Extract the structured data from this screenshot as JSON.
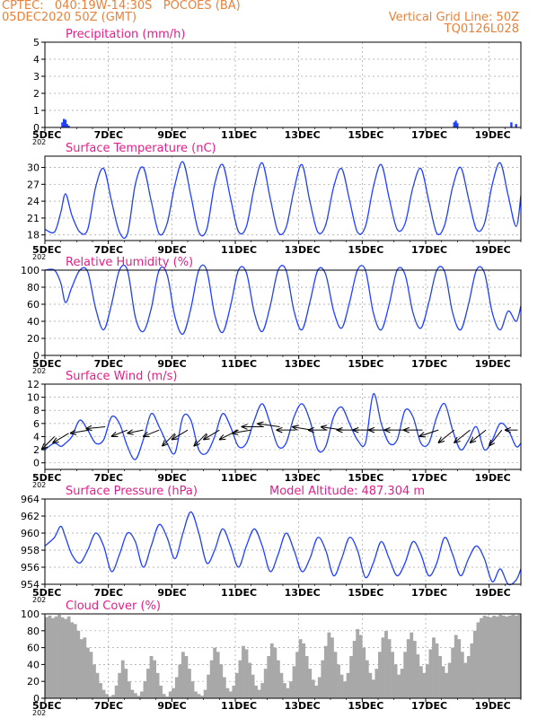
{
  "header": {
    "line1": "CPTEC:   040:19W-14:30S   POCOES (BA)",
    "line2": "05DEC2020 50Z (GMT)",
    "right1": "Vertical Grid Line: 50Z",
    "right2": "TQ0126L028"
  },
  "colors": {
    "header": "#e8823a",
    "title": "#e0208a",
    "line": "#2040ff",
    "wind_arrow": "#000000",
    "cloud": "#a8a8a8",
    "grid": "#a0a0a0"
  },
  "x_axis": {
    "range_days": [
      5,
      20
    ],
    "tick_labels": [
      "5DEC",
      "7DEC",
      "9DEC",
      "11DEC",
      "13DEC",
      "15DEC",
      "17DEC",
      "19DEC"
    ],
    "tick_days": [
      5,
      7,
      9,
      11,
      13,
      15,
      17,
      19
    ],
    "year_label": "202"
  },
  "chart_data": [
    {
      "type": "bar",
      "id": "precip",
      "title": "Precipitation (mm/h)",
      "ylim": [
        0,
        5
      ],
      "yticks": [
        0,
        1,
        2,
        3,
        4,
        5
      ],
      "x": [
        5.55,
        5.6,
        5.65,
        5.7,
        5.75,
        17.9,
        17.95,
        18.0,
        19.7,
        19.85
      ],
      "values": [
        0.3,
        0.5,
        0.45,
        0.2,
        0.1,
        0.3,
        0.4,
        0.25,
        0.3,
        0.2
      ]
    },
    {
      "type": "line",
      "id": "temp",
      "title": "Surface Temperature (nC)",
      "ylim": [
        17,
        32
      ],
      "yticks": [
        18,
        21,
        24,
        27,
        30
      ],
      "x": [
        5,
        5.3,
        5.5,
        5.65,
        5.85,
        6.1,
        6.35,
        6.6,
        6.85,
        7.1,
        7.35,
        7.6,
        7.85,
        8.1,
        8.35,
        8.6,
        8.85,
        9.1,
        9.35,
        9.6,
        9.85,
        10.1,
        10.35,
        10.6,
        10.85,
        11.1,
        11.35,
        11.6,
        11.85,
        12.1,
        12.35,
        12.6,
        12.85,
        13.1,
        13.35,
        13.6,
        13.85,
        14.1,
        14.35,
        14.6,
        14.85,
        15.1,
        15.35,
        15.6,
        15.85,
        16.1,
        16.35,
        16.6,
        16.85,
        17.1,
        17.35,
        17.6,
        17.85,
        18.1,
        18.35,
        18.6,
        18.85,
        19.1,
        19.35,
        19.6,
        19.85,
        20
      ],
      "values": [
        19,
        18.5,
        22,
        25.3,
        21.5,
        18.5,
        19,
        26.5,
        29.8,
        24,
        18.5,
        18.2,
        27,
        30,
        24,
        18.2,
        20,
        27,
        31,
        25,
        18.5,
        19,
        27,
        30.5,
        24.5,
        18.6,
        19.5,
        26.5,
        30.8,
        24.5,
        18.5,
        19.3,
        26,
        30.5,
        24,
        18.5,
        19.8,
        26.5,
        29.8,
        24.2,
        18.5,
        19.5,
        26.5,
        30.5,
        24.5,
        19,
        20,
        26.5,
        29.8,
        24,
        18.3,
        19.8,
        26.5,
        30,
        24.5,
        19,
        20,
        27,
        30.8,
        25,
        19.5,
        25
      ]
    },
    {
      "type": "line",
      "id": "rh",
      "title": "Relative Humidity (%)",
      "ylim": [
        0,
        100
      ],
      "yticks": [
        0,
        20,
        40,
        60,
        80,
        100
      ],
      "x": [
        5,
        5.3,
        5.5,
        5.65,
        5.85,
        6.1,
        6.35,
        6.6,
        6.85,
        7.1,
        7.35,
        7.6,
        7.85,
        8.1,
        8.35,
        8.6,
        8.85,
        9.1,
        9.35,
        9.6,
        9.85,
        10.1,
        10.35,
        10.6,
        10.85,
        11.1,
        11.35,
        11.6,
        11.85,
        12.1,
        12.35,
        12.6,
        12.85,
        13.1,
        13.35,
        13.6,
        13.85,
        14.1,
        14.35,
        14.6,
        14.85,
        15.1,
        15.35,
        15.6,
        15.85,
        16.1,
        16.35,
        16.6,
        16.85,
        17.1,
        17.35,
        17.6,
        17.85,
        18.1,
        18.35,
        18.6,
        18.85,
        19.1,
        19.35,
        19.6,
        19.85,
        20
      ],
      "values": [
        100,
        100,
        85,
        62,
        80,
        100,
        98,
        55,
        30,
        60,
        100,
        100,
        45,
        28,
        55,
        100,
        95,
        45,
        25,
        55,
        100,
        100,
        48,
        27,
        58,
        100,
        97,
        50,
        28,
        58,
        100,
        100,
        52,
        30,
        62,
        100,
        95,
        52,
        32,
        62,
        100,
        100,
        50,
        30,
        60,
        100,
        95,
        50,
        32,
        62,
        100,
        98,
        50,
        30,
        60,
        100,
        97,
        50,
        30,
        52,
        40,
        58
      ]
    },
    {
      "type": "line",
      "id": "wind",
      "title": "Surface Wind (m/s)",
      "ylim": [
        -1,
        12
      ],
      "yticks": [
        0,
        2,
        4,
        6,
        8,
        10,
        12
      ],
      "x": [
        5,
        5.3,
        5.5,
        5.65,
        5.85,
        6.1,
        6.35,
        6.6,
        6.85,
        7.1,
        7.35,
        7.6,
        7.85,
        8.1,
        8.35,
        8.6,
        8.85,
        9.1,
        9.35,
        9.6,
        9.85,
        10.1,
        10.35,
        10.6,
        10.85,
        11.1,
        11.35,
        11.6,
        11.85,
        12.1,
        12.35,
        12.6,
        12.85,
        13.1,
        13.35,
        13.6,
        13.85,
        14.1,
        14.35,
        14.6,
        14.85,
        15.1,
        15.35,
        15.6,
        15.85,
        16.1,
        16.35,
        16.6,
        16.85,
        17.1,
        17.35,
        17.6,
        17.85,
        18.1,
        18.35,
        18.6,
        18.85,
        19.1,
        19.35,
        19.6,
        19.85,
        20
      ],
      "values": [
        2,
        3,
        2.5,
        3,
        4,
        6.5,
        5,
        3,
        3.5,
        7,
        6,
        2.5,
        0.5,
        3.5,
        7.5,
        5.5,
        3,
        1.5,
        7,
        6.5,
        2,
        1.5,
        4,
        7.5,
        5.5,
        2.5,
        3,
        6.5,
        9,
        6,
        2.5,
        3,
        7,
        9,
        6.5,
        2,
        2.5,
        7,
        8.5,
        6,
        3.5,
        3,
        10.5,
        6,
        3,
        3.5,
        8,
        7,
        3,
        3,
        7,
        9,
        5,
        2,
        3.5,
        5.5,
        2,
        3.5,
        6,
        5,
        2.5,
        3
      ],
      "arrows": {
        "x": [
          5.3,
          5.75,
          6.4,
          6.9,
          7.6,
          8.1,
          8.6,
          9.1,
          9.5,
          10.1,
          10.5,
          11.1,
          11.5,
          11.9,
          12.4,
          12.9,
          13.4,
          13.9,
          14.4,
          14.9,
          15.4,
          15.9,
          16.4,
          16.9,
          17.4,
          17.9,
          18.4,
          18.9,
          19.4,
          19.9
        ],
        "y": [
          4,
          4.5,
          5,
          5.5,
          5,
          5,
          5,
          4.5,
          5,
          4.5,
          5,
          5,
          5,
          5.5,
          5.5,
          5,
          5,
          5,
          5,
          5,
          5,
          5,
          5,
          5,
          5,
          5,
          5,
          5,
          5,
          5
        ],
        "u": [
          -2,
          -2.5,
          -3,
          -3,
          -2.5,
          -2.5,
          -2.5,
          -2,
          -2.5,
          -2,
          -2.5,
          -3,
          -3,
          -3.5,
          -3.5,
          -3,
          -3,
          -3,
          -3.5,
          -3.5,
          -3.5,
          -3.5,
          -3.5,
          -3,
          -3,
          -2.5,
          -2.5,
          -2.5,
          -2,
          -2
        ],
        "v": [
          -2,
          -1.5,
          -0.5,
          -0.3,
          -1,
          -0.5,
          -1,
          -2,
          -1.5,
          -2,
          -1.5,
          -1.5,
          -0.5,
          0,
          0.5,
          0,
          0.5,
          0,
          0.5,
          0,
          0,
          0,
          0,
          0,
          -1,
          -2,
          -2,
          -2,
          -2.5,
          0
        ]
      }
    },
    {
      "type": "line",
      "id": "pres",
      "title": "Surface Pressure (hPa)",
      "ylim": [
        954,
        964
      ],
      "yticks": [
        954,
        956,
        958,
        960,
        962,
        964
      ],
      "subtitle": "Model Altitude: 487.304  m",
      "x": [
        5,
        5.3,
        5.5,
        5.65,
        5.85,
        6.1,
        6.35,
        6.6,
        6.85,
        7.1,
        7.35,
        7.6,
        7.85,
        8.1,
        8.35,
        8.6,
        8.85,
        9.1,
        9.35,
        9.6,
        9.85,
        10.1,
        10.35,
        10.6,
        10.85,
        11.1,
        11.35,
        11.6,
        11.85,
        12.1,
        12.35,
        12.6,
        12.85,
        13.1,
        13.35,
        13.6,
        13.85,
        14.1,
        14.35,
        14.6,
        14.85,
        15.1,
        15.35,
        15.6,
        15.85,
        16.1,
        16.35,
        16.6,
        16.85,
        17.1,
        17.35,
        17.6,
        17.85,
        18.1,
        18.35,
        18.6,
        18.85,
        19.1,
        19.35,
        19.6,
        19.85,
        20
      ],
      "values": [
        958.5,
        959.5,
        960.8,
        959.5,
        957.5,
        956.5,
        958,
        960,
        958.5,
        955.5,
        957.5,
        960,
        959,
        956,
        958.5,
        961,
        959.5,
        957,
        960,
        962.5,
        960,
        956.5,
        958,
        960.5,
        958.5,
        956,
        958.5,
        960.5,
        958.5,
        955.5,
        957.5,
        960,
        958,
        955.5,
        957,
        959.5,
        958,
        955,
        957,
        959.5,
        958,
        954.8,
        956.5,
        959,
        957,
        955,
        956.5,
        959,
        957.5,
        955,
        956.5,
        959.5,
        957.5,
        955,
        957,
        958.5,
        957,
        954.3,
        955.8,
        954,
        954.5,
        955.8
      ]
    },
    {
      "type": "bar",
      "id": "cloud",
      "title": "Cloud Cover (%)",
      "ylim": [
        0,
        100
      ],
      "yticks": [
        0,
        20,
        40,
        60,
        80,
        100
      ],
      "x": [
        5.0,
        5.1,
        5.2,
        5.3,
        5.4,
        5.5,
        5.6,
        5.7,
        5.8,
        5.9,
        6.0,
        6.1,
        6.2,
        6.3,
        6.4,
        6.5,
        6.6,
        6.7,
        6.8,
        6.9,
        7.0,
        7.1,
        7.2,
        7.3,
        7.4,
        7.5,
        7.6,
        7.7,
        7.8,
        7.9,
        8.0,
        8.1,
        8.2,
        8.3,
        8.4,
        8.5,
        8.6,
        8.7,
        8.8,
        8.9,
        9.0,
        9.1,
        9.2,
        9.3,
        9.4,
        9.5,
        9.6,
        9.7,
        9.8,
        9.9,
        10.0,
        10.1,
        10.2,
        10.3,
        10.4,
        10.5,
        10.6,
        10.7,
        10.8,
        10.9,
        11.0,
        11.1,
        11.2,
        11.3,
        11.4,
        11.5,
        11.6,
        11.7,
        11.8,
        11.9,
        12.0,
        12.1,
        12.2,
        12.3,
        12.4,
        12.5,
        12.6,
        12.7,
        12.8,
        12.9,
        13.0,
        13.1,
        13.2,
        13.3,
        13.4,
        13.5,
        13.6,
        13.7,
        13.8,
        13.9,
        14.0,
        14.1,
        14.2,
        14.3,
        14.4,
        14.5,
        14.6,
        14.7,
        14.8,
        14.9,
        15.0,
        15.1,
        15.2,
        15.3,
        15.4,
        15.5,
        15.6,
        15.7,
        15.8,
        15.9,
        16.0,
        16.1,
        16.2,
        16.3,
        16.4,
        16.5,
        16.6,
        16.7,
        16.8,
        16.9,
        17.0,
        17.1,
        17.2,
        17.3,
        17.4,
        17.5,
        17.6,
        17.7,
        17.8,
        17.9,
        18.0,
        18.1,
        18.2,
        18.3,
        18.4,
        18.5,
        18.6,
        18.7,
        18.8,
        18.9,
        19.0,
        19.1,
        19.2,
        19.3,
        19.4,
        19.5,
        19.6,
        19.7,
        19.8,
        19.9
      ],
      "values": [
        96,
        98,
        95,
        97,
        99,
        96,
        94,
        97,
        90,
        88,
        80,
        70,
        72,
        60,
        55,
        40,
        30,
        18,
        10,
        5,
        2,
        4,
        15,
        30,
        45,
        35,
        20,
        10,
        6,
        3,
        8,
        20,
        35,
        50,
        45,
        30,
        15,
        5,
        2,
        8,
        12,
        25,
        40,
        55,
        50,
        35,
        20,
        8,
        5,
        3,
        10,
        28,
        45,
        60,
        55,
        40,
        25,
        12,
        8,
        15,
        30,
        45,
        62,
        58,
        42,
        28,
        15,
        10,
        18,
        35,
        50,
        65,
        60,
        45,
        30,
        18,
        12,
        20,
        38,
        55,
        70,
        65,
        50,
        35,
        22,
        15,
        25,
        45,
        62,
        78,
        72,
        55,
        40,
        28,
        20,
        30,
        50,
        68,
        82,
        75,
        60,
        45,
        30,
        22,
        35,
        55,
        72,
        80,
        70,
        55,
        40,
        28,
        35,
        55,
        70,
        78,
        68,
        52,
        38,
        30,
        40,
        58,
        72,
        65,
        50,
        38,
        30,
        42,
        60,
        75,
        70,
        55,
        42,
        50,
        65,
        80,
        90,
        95,
        98,
        97,
        96,
        98,
        97,
        99,
        98,
        97,
        98,
        99,
        98,
        99
      ]
    }
  ]
}
